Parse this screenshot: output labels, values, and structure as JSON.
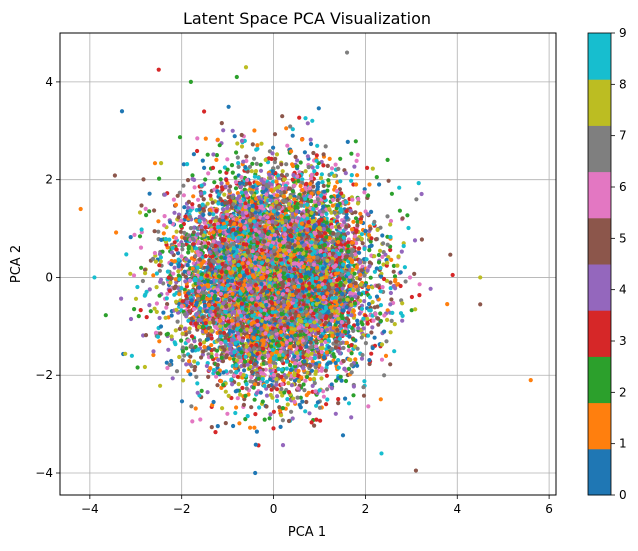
{
  "chart_data": {
    "type": "scatter",
    "title": "Latent Space PCA Visualization",
    "xlabel": "PCA 1",
    "ylabel": "PCA 2",
    "xlim": [
      -4.65,
      6.15
    ],
    "ylim": [
      -4.45,
      5.0
    ],
    "xticks": [
      -4,
      -2,
      0,
      2,
      4,
      6
    ],
    "xtick_labels": [
      "−4",
      "−2",
      "0",
      "2",
      "4",
      "6"
    ],
    "yticks": [
      -4,
      -2,
      0,
      2,
      4
    ],
    "ytick_labels": [
      "−4",
      "−2",
      "0",
      "2",
      "4"
    ],
    "grid": true,
    "colorbar": {
      "label_values": [
        "0",
        "1",
        "2",
        "3",
        "4",
        "5",
        "6",
        "7",
        "8",
        "9"
      ],
      "colormap": "tab10",
      "colors": [
        "#1f77b4",
        "#ff7f0e",
        "#2ca02c",
        "#d62728",
        "#9467bd",
        "#8c564b",
        "#e377c2",
        "#7f7f7f",
        "#bcbd22",
        "#17becf"
      ]
    },
    "distribution": {
      "description_note": "Dense roughly circular cloud of ~10000 points centered near (0, 0), std approx 1.0 on both axes, colored by class 0-9",
      "center": [
        0.0,
        0.0
      ],
      "std": [
        1.0,
        1.0
      ],
      "n_points": 10000
    },
    "notable_points": [
      {
        "x": 5.6,
        "y": -2.1,
        "class": 1
      },
      {
        "x": 4.5,
        "y": 0.0,
        "class": 8
      },
      {
        "x": 4.5,
        "y": -0.55,
        "class": 5
      },
      {
        "x": -4.2,
        "y": 1.4,
        "class": 1
      },
      {
        "x": 1.6,
        "y": 4.6,
        "class": 7
      },
      {
        "x": -0.4,
        "y": -4.0,
        "class": 0
      },
      {
        "x": 3.1,
        "y": -3.95,
        "class": 5
      },
      {
        "x": -2.5,
        "y": 4.25,
        "class": 3
      },
      {
        "x": -1.8,
        "y": 4.0,
        "class": 2
      },
      {
        "x": -0.6,
        "y": 4.3,
        "class": 8
      },
      {
        "x": -0.8,
        "y": 4.1,
        "class": 2
      },
      {
        "x": 3.9,
        "y": 0.05,
        "class": 3
      },
      {
        "x": 2.35,
        "y": -3.6,
        "class": 9
      },
      {
        "x": -3.9,
        "y": 0.0,
        "class": 9
      },
      {
        "x": -3.3,
        "y": 3.4,
        "class": 0
      }
    ]
  }
}
